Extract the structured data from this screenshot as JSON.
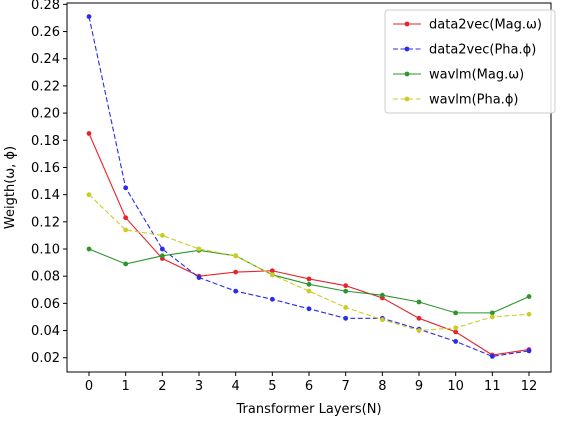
{
  "chart_data": {
    "type": "line",
    "title": "",
    "xlabel": "Transformer Layers(N)",
    "ylabel": "Weigth(ω, ϕ)",
    "x": [
      0,
      1,
      2,
      3,
      4,
      5,
      6,
      7,
      8,
      9,
      10,
      11,
      12
    ],
    "xlim": [
      -0.6,
      12.6
    ],
    "ylim": [
      0.0095,
      0.281
    ],
    "xticks": [
      0,
      1,
      2,
      3,
      4,
      5,
      6,
      7,
      8,
      9,
      10,
      11,
      12
    ],
    "yticks": [
      0.02,
      0.04,
      0.06,
      0.08,
      0.1,
      0.12,
      0.14,
      0.16,
      0.18,
      0.2,
      0.22,
      0.24,
      0.26,
      0.28
    ],
    "ytick_labels": [
      "0.02",
      "0.04",
      "0.06",
      "0.08",
      "0.10",
      "0.12",
      "0.14",
      "0.16",
      "0.18",
      "0.20",
      "0.22",
      "0.24",
      "0.26",
      "0.28"
    ],
    "grid": false,
    "legend_position": "top-right",
    "series": [
      {
        "name": "data2vec(Mag.ω)",
        "color": "#e8232a",
        "dash": "solid",
        "values": [
          0.185,
          0.123,
          0.093,
          0.08,
          0.083,
          0.084,
          0.078,
          0.073,
          0.064,
          0.049,
          0.039,
          0.022,
          0.026
        ]
      },
      {
        "name": "data2vec(Pha.ϕ)",
        "color": "#2b2bea",
        "dash": "dashed",
        "values": [
          0.271,
          0.145,
          0.1,
          0.079,
          0.069,
          0.063,
          0.056,
          0.049,
          0.049,
          0.041,
          0.032,
          0.021,
          0.025
        ]
      },
      {
        "name": "wavlm(Mag.ω)",
        "color": "#2c962c",
        "dash": "solid",
        "values": [
          0.1,
          0.089,
          0.095,
          0.099,
          0.095,
          0.081,
          0.074,
          0.069,
          0.066,
          0.061,
          0.053,
          0.053,
          0.065
        ]
      },
      {
        "name": "wavlm(Pha.ϕ)",
        "color": "#cccc22",
        "dash": "dashed",
        "values": [
          0.14,
          0.114,
          0.11,
          0.1,
          0.095,
          0.081,
          0.069,
          0.057,
          0.048,
          0.04,
          0.042,
          0.05,
          0.052
        ]
      }
    ]
  }
}
